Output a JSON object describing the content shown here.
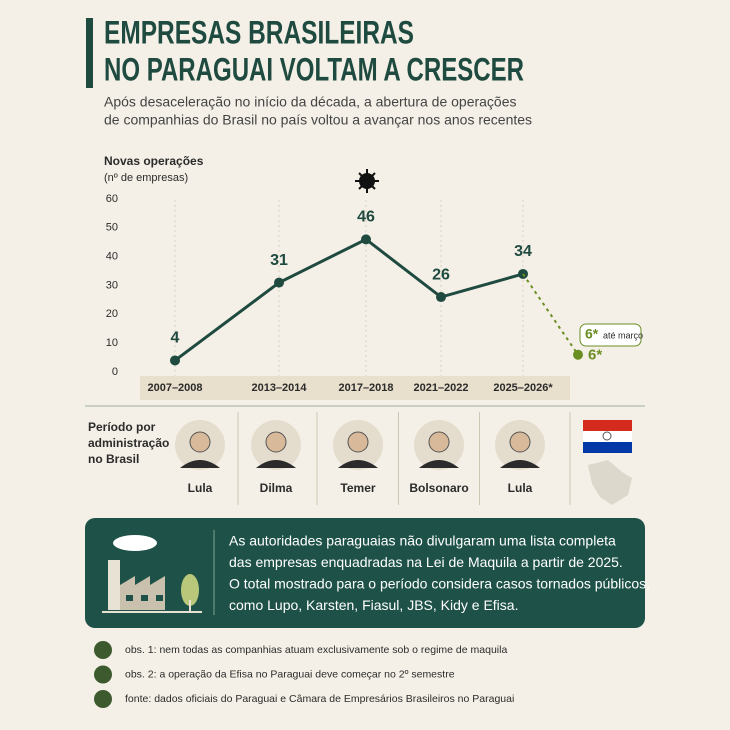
{
  "chart_data": {
    "type": "line",
    "title": [
      "EMPRESAS BRASILEIRAS",
      "NO PARAGUAI VOLTAM A CRESCER"
    ],
    "subtitle": [
      "Após desaceleração no início da década, a abertura de operações",
      "de companhias do Brasil no país voltou a avançar nos anos recentes"
    ],
    "y_label": [
      "Novas operações",
      "(nº de empresas)"
    ],
    "categories": [
      "2007–2008",
      "2013–2014",
      "2017–2018",
      "2021–2022",
      "2025–2026*",
      null
    ],
    "series": [
      {
        "color": "#1f4a40",
        "values": [
          4,
          31,
          46,
          26,
          34,
          null
        ]
      },
      {
        "color": "#6b8e23",
        "values": [
          null,
          null,
          null,
          null,
          34,
          6
        ],
        "value_labels": [
          null,
          null,
          null,
          null,
          null,
          "6*"
        ],
        "dashed": true
      }
    ],
    "annotation": {
      "label": "6*",
      "detail": "até março"
    },
    "ylim": [
      0,
      60
    ],
    "yticks": [
      0,
      10,
      20,
      30,
      40,
      50,
      60
    ],
    "grid": false
  },
  "administrations": {
    "label": [
      "Período por",
      "administração",
      "no Brasil"
    ],
    "presidents": [
      "Lula",
      "Dilma",
      "Temer",
      "Bolsonaro",
      "Lula"
    ]
  },
  "info_box": [
    "As autoridades paraguaias não divulgaram uma lista completa",
    "das empresas enquadradas na Lei de Maquila a partir de 2025.",
    "O total mostrado para o período considera casos tornados públicos,",
    "como Lupo, Karsten, Fiasul, JBS, Kidy e Efisa."
  ],
  "notes": [
    "obs. 1: nem todas as companhias atuam exclusivamente sob o regime de maquila",
    "obs. 2: a operação da Efisa no Paraguai deve começar no 2º semestre",
    "fonte: dados oficiais do Paraguai e Câmara de Empresários Brasileiros no Paraguai"
  ]
}
